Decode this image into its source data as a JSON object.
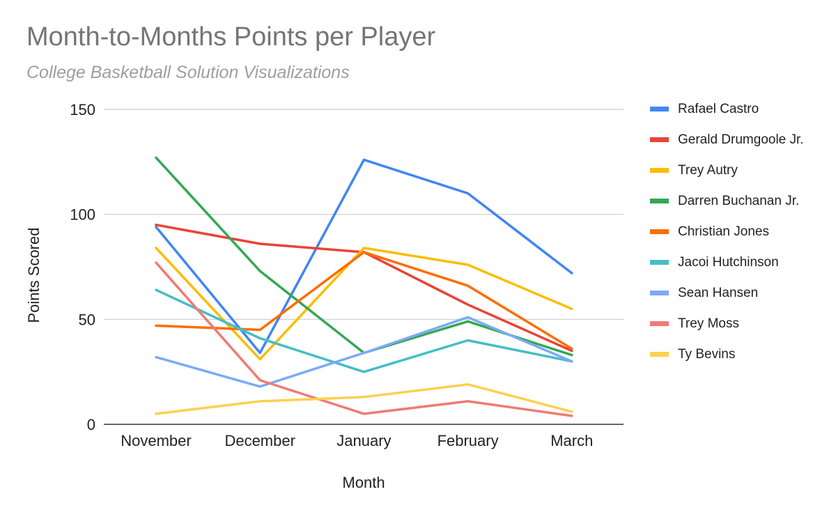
{
  "chart_data": {
    "type": "line",
    "title": "Month-to-Months Points per Player",
    "subtitle": "College Basketball Solution Visualizations",
    "xlabel": "Month",
    "ylabel": "Points Scored",
    "categories": [
      "November",
      "December",
      "January",
      "February",
      "March"
    ],
    "ylim": [
      0,
      150
    ],
    "yticks": [
      0,
      50,
      100,
      150
    ],
    "grid": true,
    "legend_position": "right",
    "series": [
      {
        "name": "Rafael Castro",
        "color": "#4285f4",
        "values": [
          94,
          34,
          126,
          110,
          72
        ]
      },
      {
        "name": "Gerald Drumgoole Jr.",
        "color": "#ea4335",
        "values": [
          95,
          86,
          82,
          57,
          35
        ]
      },
      {
        "name": "Trey Autry",
        "color": "#fbbc04",
        "values": [
          84,
          31,
          84,
          76,
          55
        ]
      },
      {
        "name": "Darren Buchanan Jr.",
        "color": "#34a853",
        "values": [
          127,
          73,
          34,
          49,
          33
        ]
      },
      {
        "name": "Christian Jones",
        "color": "#ff6d01",
        "values": [
          47,
          45,
          82,
          66,
          36
        ]
      },
      {
        "name": "Jacoi Hutchinson",
        "color": "#46bdc6",
        "values": [
          64,
          41,
          25,
          40,
          30
        ]
      },
      {
        "name": "Sean Hansen",
        "color": "#7baaf7",
        "values": [
          32,
          18,
          34,
          51,
          30
        ]
      },
      {
        "name": "Trey Moss",
        "color": "#f07b72",
        "values": [
          77,
          21,
          5,
          11,
          4
        ]
      },
      {
        "name": "Ty Bevins",
        "color": "#fcd04f",
        "values": [
          5,
          11,
          13,
          19,
          6
        ]
      }
    ]
  }
}
